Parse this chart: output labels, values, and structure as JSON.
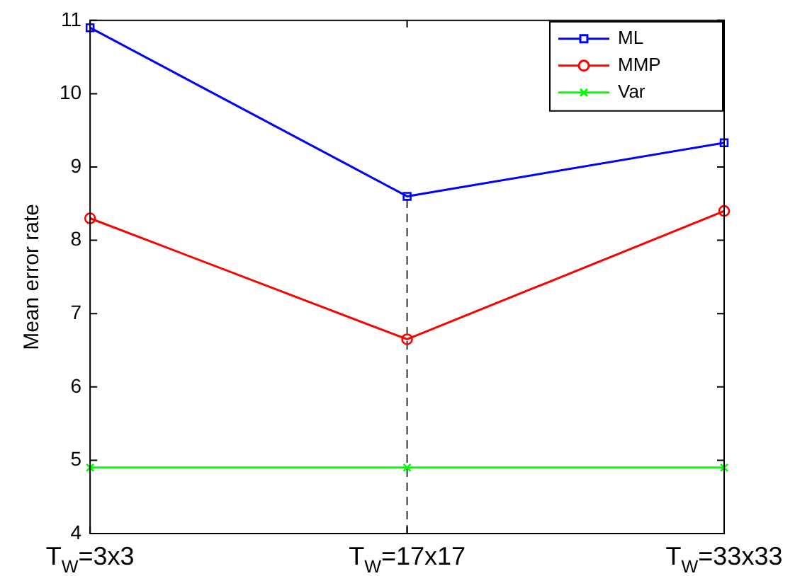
{
  "chart_data": {
    "type": "line",
    "ylabel": "Mean error rate",
    "categories": [
      "T$_{W}$=3x3",
      "T$_{W}$=17x17",
      "T$_{W}$=33x33"
    ],
    "series": [
      {
        "name": "ML",
        "color": "#0000ff",
        "values": [
          10.9,
          8.6,
          9.33
        ],
        "marker": "square"
      },
      {
        "name": "MMP",
        "color": "#ff0000",
        "values": [
          8.3,
          6.65,
          8.4
        ],
        "marker": "circle"
      },
      {
        "name": "Var",
        "color": "#00ff00",
        "values": [
          4.9,
          4.9,
          4.9
        ],
        "marker": "cross"
      }
    ],
    "ylim": [
      4,
      11
    ],
    "yticks": [
      4,
      5,
      6,
      7,
      8,
      9,
      10,
      11
    ],
    "ref_lines": [
      {
        "axis": "x",
        "value": "T$_{W}$=17x17",
        "color": "#333333",
        "line_style": "dashed"
      }
    ],
    "grid": false,
    "legend": "top right",
    "line_style": "solid"
  }
}
